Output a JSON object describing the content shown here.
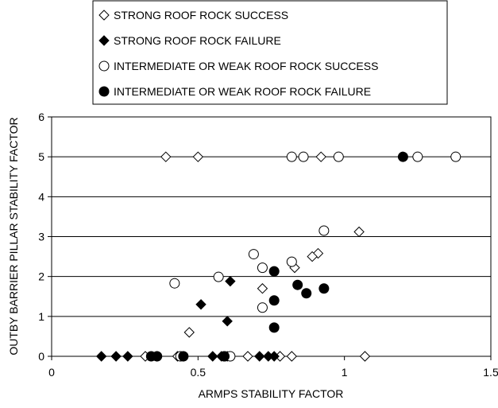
{
  "chart_data": {
    "type": "scatter",
    "xlabel": "ARMPS STABILITY FACTOR",
    "ylabel": "OUTBY BARRIER PILLAR STABILITY FACTOR",
    "xlim": [
      0,
      1.5
    ],
    "ylim": [
      0,
      6
    ],
    "xticks": [
      "0",
      "0.5",
      "1",
      "1.5"
    ],
    "yticks": [
      "0",
      "1",
      "2",
      "3",
      "4",
      "5",
      "6"
    ],
    "grid": "horizontal",
    "legend_position": "top",
    "series": [
      {
        "name": "STRONG ROOF ROCK SUCCESS",
        "marker": "diamond-open",
        "points": [
          [
            0.39,
            5.0
          ],
          [
            0.5,
            5.0
          ],
          [
            0.92,
            5.0
          ],
          [
            1.05,
            3.12
          ],
          [
            0.91,
            2.58
          ],
          [
            0.89,
            2.5
          ],
          [
            0.83,
            2.22
          ],
          [
            0.72,
            1.7
          ],
          [
            0.47,
            0.6
          ],
          [
            0.32,
            0.0
          ],
          [
            0.43,
            0.0
          ],
          [
            0.67,
            0.0
          ],
          [
            0.78,
            0.0
          ],
          [
            0.82,
            0.0
          ],
          [
            1.07,
            0.0
          ]
        ]
      },
      {
        "name": "STRONG ROOF ROCK FAILURE",
        "marker": "diamond-filled",
        "points": [
          [
            0.61,
            1.88
          ],
          [
            0.51,
            1.3
          ],
          [
            0.6,
            0.88
          ],
          [
            0.17,
            0.0
          ],
          [
            0.22,
            0.0
          ],
          [
            0.26,
            0.0
          ],
          [
            0.36,
            0.0
          ],
          [
            0.45,
            0.0
          ],
          [
            0.55,
            0.0
          ],
          [
            0.58,
            0.0
          ],
          [
            0.6,
            0.0
          ],
          [
            0.71,
            0.0
          ],
          [
            0.74,
            0.0
          ],
          [
            0.76,
            0.0
          ]
        ]
      },
      {
        "name": "INTERMEDIATE OR WEAK ROOF ROCK SUCCESS",
        "marker": "circle-open",
        "points": [
          [
            0.82,
            5.0
          ],
          [
            0.86,
            5.0
          ],
          [
            0.98,
            5.0
          ],
          [
            1.25,
            5.0
          ],
          [
            1.38,
            5.0
          ],
          [
            0.93,
            3.15
          ],
          [
            0.69,
            2.56
          ],
          [
            0.82,
            2.37
          ],
          [
            0.72,
            2.22
          ],
          [
            0.57,
            1.99
          ],
          [
            0.42,
            1.83
          ],
          [
            0.72,
            1.22
          ],
          [
            0.44,
            0.0
          ],
          [
            0.59,
            0.0
          ],
          [
            0.61,
            0.0
          ]
        ]
      },
      {
        "name": "INTERMEDIATE OR WEAK ROOF ROCK FAILURE",
        "marker": "circle-filled",
        "points": [
          [
            1.2,
            5.0
          ],
          [
            0.76,
            2.13
          ],
          [
            0.84,
            1.79
          ],
          [
            0.93,
            1.7
          ],
          [
            0.87,
            1.58
          ],
          [
            0.76,
            1.4
          ],
          [
            0.76,
            0.72
          ],
          [
            0.34,
            0.0
          ],
          [
            0.36,
            0.0
          ],
          [
            0.45,
            0.0
          ],
          [
            0.59,
            0.0
          ]
        ]
      }
    ]
  }
}
